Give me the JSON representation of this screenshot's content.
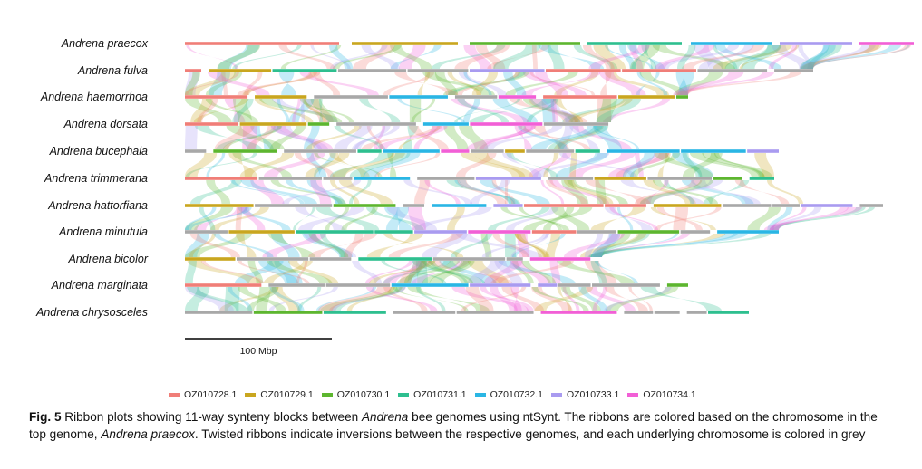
{
  "figure": {
    "species": [
      "Andrena praecox",
      "Andrena fulva",
      "Andrena haemorrhoa",
      "Andrena dorsata",
      "Andrena bucephala",
      "Andrena trimmerana",
      "Andrena hattorfiana",
      "Andrena minutula",
      "Andrena bicolor",
      "Andrena marginata",
      "Andrena chrysosceles"
    ],
    "scale_bar_label": "100 Mbp",
    "scale_bar_mbp": 100,
    "grey_color": "#a8a8a8"
  },
  "legend": [
    {
      "label": "OZ010728.1",
      "color": "#f07e78"
    },
    {
      "label": "OZ010729.1",
      "color": "#c9a61f"
    },
    {
      "label": "OZ010730.1",
      "color": "#5db62f"
    },
    {
      "label": "OZ010731.1",
      "color": "#2ebf8f"
    },
    {
      "label": "OZ010732.1",
      "color": "#2ab6e4"
    },
    {
      "label": "OZ010733.1",
      "color": "#a99bf0"
    },
    {
      "label": "OZ010734.1",
      "color": "#f25fd6"
    }
  ],
  "caption": {
    "fig_label": "Fig. 5",
    "part1": " Ribbon plots showing 11-way synteny blocks between ",
    "part2": "Andrena",
    "part3": " bee genomes using ntSynt. The ribbons are colored based on the chromosome in the top genome, ",
    "part4": "Andrena praecox",
    "part5": ". Twisted ribbons indicate inversions between the respective genomes, and each underlying chromosome is colored in grey"
  }
}
